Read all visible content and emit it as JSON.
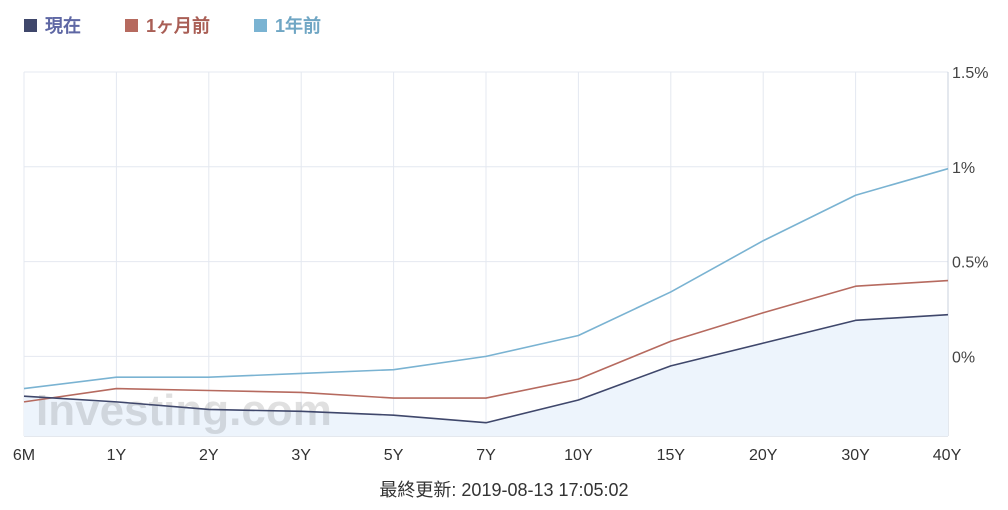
{
  "chart_data": {
    "type": "line",
    "categories": [
      "6M",
      "1Y",
      "2Y",
      "3Y",
      "5Y",
      "7Y",
      "10Y",
      "15Y",
      "20Y",
      "30Y",
      "40Y"
    ],
    "series": [
      {
        "name": "現在",
        "color": "#3f476b",
        "values": [
          -0.21,
          -0.24,
          -0.28,
          -0.29,
          -0.31,
          -0.35,
          -0.23,
          -0.05,
          0.07,
          0.19,
          0.22
        ]
      },
      {
        "name": "1ヶ月前",
        "color": "#b66a5f",
        "values": [
          -0.24,
          -0.17,
          -0.18,
          -0.19,
          -0.22,
          -0.22,
          -0.12,
          0.08,
          0.23,
          0.37,
          0.4
        ]
      },
      {
        "name": "1年前",
        "color": "#7ab3d2",
        "values": [
          -0.17,
          -0.11,
          -0.11,
          -0.09,
          -0.07,
          0.0,
          0.11,
          0.34,
          0.61,
          0.85,
          0.99
        ]
      }
    ],
    "yticks": [
      {
        "value": 1.5,
        "label": "1.5%"
      },
      {
        "value": 1.0,
        "label": "1%"
      },
      {
        "value": 0.5,
        "label": "0.5%"
      },
      {
        "value": 0.0,
        "label": "0%"
      }
    ],
    "ylim": [
      -0.42,
      1.5
    ],
    "area_fill_series": "現在",
    "area_fill_color": "#edf4fc",
    "grid": true,
    "legend_position": "top-left"
  },
  "legend": {
    "current": {
      "label": "現在",
      "color": "#4a4f7a"
    },
    "month_ago": {
      "label": "1ヶ月前",
      "color": "#b66a5f"
    },
    "year_ago": {
      "label": "1年前",
      "color": "#7ab3d2"
    }
  },
  "watermark": "Investing.com",
  "footer": {
    "updated_text": "最終更新: 2019-08-13 17:05:02"
  }
}
